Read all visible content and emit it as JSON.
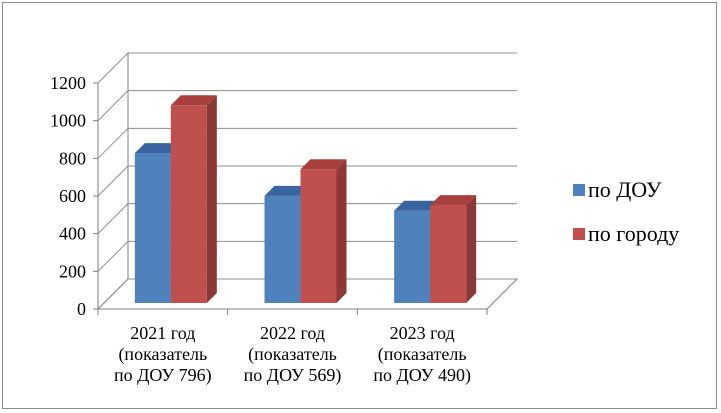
{
  "chart_data": {
    "type": "bar",
    "style": "3d-clustered-column",
    "categories": [
      [
        "2021 год",
        "(показатель",
        "по ДОУ 796)"
      ],
      [
        "2022 год",
        "(показатель",
        "по ДОУ 569)"
      ],
      [
        "2023 год",
        "(показатель",
        "по ДОУ 490)"
      ]
    ],
    "series": [
      {
        "name": "по ДОУ",
        "values": [
          796,
          569,
          490
        ],
        "color": "#4f81bd",
        "side_color": "#385d8a",
        "top_color": "#3a64a0"
      },
      {
        "name": "по городу",
        "values": [
          1050,
          710,
          520
        ],
        "color": "#c0504d",
        "side_color": "#8c3836",
        "top_color": "#a8413e"
      }
    ],
    "yticks": [
      0,
      200,
      400,
      600,
      800,
      1000,
      1200
    ],
    "ylim": [
      0,
      1200
    ],
    "grid": true,
    "legend_position": "right",
    "title": "",
    "xlabel": "",
    "ylabel": ""
  }
}
